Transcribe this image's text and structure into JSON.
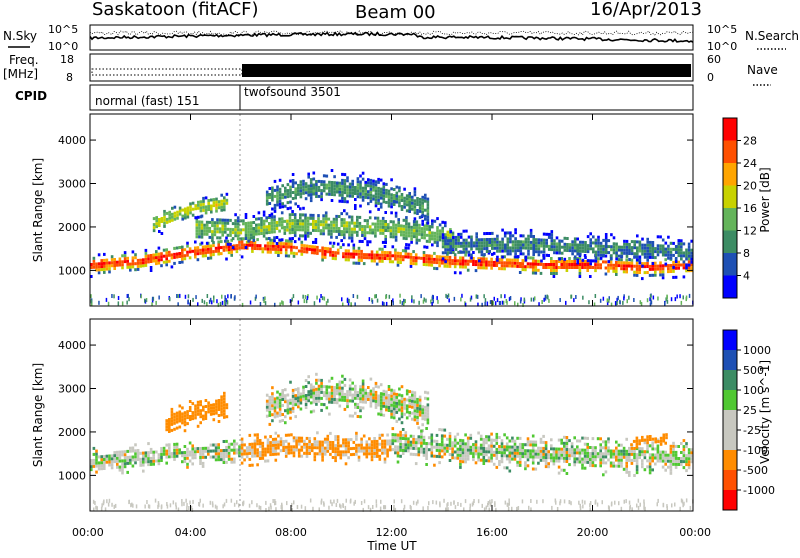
{
  "header": {
    "station": "Saskatoon (fitACF)",
    "beam": "Beam 00",
    "date": "16/Apr/2013"
  },
  "strip_labels": {
    "nsky": "N.Sky",
    "nsearch": "N.Search",
    "freq": "Freq.",
    "freq_unit": "[MHz]",
    "nave": "Nave",
    "cpid": "CPID"
  },
  "noise_axis": {
    "left_ticks": [
      "10^5",
      "10^0"
    ],
    "right_ticks": [
      "10^5",
      "10^0"
    ]
  },
  "freq_axis": {
    "left_ticks": [
      "18",
      "8"
    ],
    "right_ticks": [
      "60",
      "0"
    ]
  },
  "cpid": {
    "program1": "normal (fast) 151",
    "program2": "twofsound 3501",
    "switch_hour": 6
  },
  "time_axis": {
    "label": "Time UT",
    "ticks": [
      "00:00",
      "04:00",
      "08:00",
      "12:00",
      "16:00",
      "20:00",
      "00:00"
    ]
  },
  "power_colorbar": {
    "label": "Power [dB]",
    "ticks": [
      "28",
      "24",
      "20",
      "16",
      "12",
      "8",
      "4"
    ]
  },
  "velocity_colorbar": {
    "label": "Velocity [m s^-1]",
    "ticks": [
      "1000",
      "500",
      "100",
      "25",
      "-25",
      "-100",
      "-500",
      "-1000"
    ]
  },
  "chart_data": [
    {
      "type": "heatmap",
      "name": "power",
      "ylabel": "Slant Range [km]",
      "xlabel": "",
      "xlim": [
        0,
        24
      ],
      "ylim": [
        180,
        4600
      ],
      "yticks": [
        1000,
        2000,
        3000,
        4000
      ],
      "zlim": [
        0,
        30
      ],
      "colors": [
        "#0000ff",
        "#1e50b4",
        "#3c8c64",
        "#64b45a",
        "#c8d200",
        "#ffa500",
        "#ff5000",
        "#ff0000"
      ],
      "bands": [
        {
          "start": 0,
          "end": 24,
          "center": [
            [
              0,
              1150
            ],
            [
              2,
              1250
            ],
            [
              4,
              1450
            ],
            [
              6,
              1600
            ],
            [
              8,
              1550
            ],
            [
              10,
              1400
            ],
            [
              12,
              1350
            ],
            [
              14,
              1250
            ],
            [
              16,
              1200
            ],
            [
              18,
              1150
            ],
            [
              20,
              1150
            ],
            [
              22,
              1100
            ],
            [
              24,
              1150
            ]
          ],
          "half_width": 160,
          "peak_db": 26
        },
        {
          "start": 4.2,
          "end": 14.5,
          "center": [
            [
              4.2,
              2000
            ],
            [
              6,
              1950
            ],
            [
              8,
              2100
            ],
            [
              10,
              2050
            ],
            [
              12,
              2000
            ],
            [
              14,
              1850
            ],
            [
              14.5,
              1800
            ]
          ],
          "half_width": 250,
          "peak_db": 14
        },
        {
          "start": 2.5,
          "end": 5.5,
          "center": [
            [
              2.5,
              2100
            ],
            [
              4,
              2450
            ],
            [
              5.5,
              2600
            ]
          ],
          "half_width": 180,
          "peak_db": 16
        },
        {
          "start": 7,
          "end": 13.5,
          "center": [
            [
              7,
              2700
            ],
            [
              9,
              2950
            ],
            [
              11,
              2850
            ],
            [
              13,
              2550
            ],
            [
              13.5,
              2450
            ]
          ],
          "half_width": 260,
          "peak_db": 10
        },
        {
          "start": 14,
          "end": 24,
          "center": [
            [
              14,
              1600
            ],
            [
              17,
              1650
            ],
            [
              20,
              1550
            ],
            [
              24,
              1450
            ]
          ],
          "half_width": 230,
          "peak_db": 9
        }
      ]
    },
    {
      "type": "heatmap",
      "name": "velocity",
      "ylabel": "Slant Range [km]",
      "xlabel": "Time UT",
      "xlim": [
        0,
        24
      ],
      "ylim": [
        180,
        4600
      ],
      "yticks": [
        1000,
        2000,
        3000,
        4000
      ],
      "zlim": [
        -1000,
        1000
      ],
      "colors": [
        "#ff0000",
        "#ff5000",
        "#ff8c00",
        "#c8c8c0",
        "#c8c8c0",
        "#50c832",
        "#3c8c64",
        "#1e50b4",
        "#0000ff"
      ],
      "bands": [
        {
          "start": 0,
          "end": 6,
          "center": [
            [
              0,
              1350
            ],
            [
              2,
              1450
            ],
            [
              4,
              1550
            ],
            [
              6,
              1600
            ]
          ],
          "half_width": 200,
          "velocity": 0
        },
        {
          "start": 6,
          "end": 12,
          "center": [
            [
              6,
              1600
            ],
            [
              8,
              1700
            ],
            [
              10,
              1650
            ],
            [
              12,
              1700
            ]
          ],
          "half_width": 220,
          "velocity": -150
        },
        {
          "start": 3,
          "end": 5.5,
          "center": [
            [
              3,
              2200
            ],
            [
              4,
              2450
            ],
            [
              5.5,
              2650
            ]
          ],
          "half_width": 200,
          "velocity": -250
        },
        {
          "start": 7,
          "end": 13.5,
          "center": [
            [
              7,
              2600
            ],
            [
              9,
              2950
            ],
            [
              11,
              2850
            ],
            [
              13.5,
              2500
            ]
          ],
          "half_width": 300,
          "velocity": 0
        },
        {
          "start": 12,
          "end": 24,
          "center": [
            [
              12,
              1800
            ],
            [
              16,
              1600
            ],
            [
              20,
              1500
            ],
            [
              24,
              1450
            ]
          ],
          "half_width": 280,
          "velocity": 0
        },
        {
          "start": 21.5,
          "end": 23,
          "center": [
            [
              21.5,
              1800
            ],
            [
              23,
              1900
            ]
          ],
          "half_width": 80,
          "velocity": -250
        }
      ]
    }
  ]
}
